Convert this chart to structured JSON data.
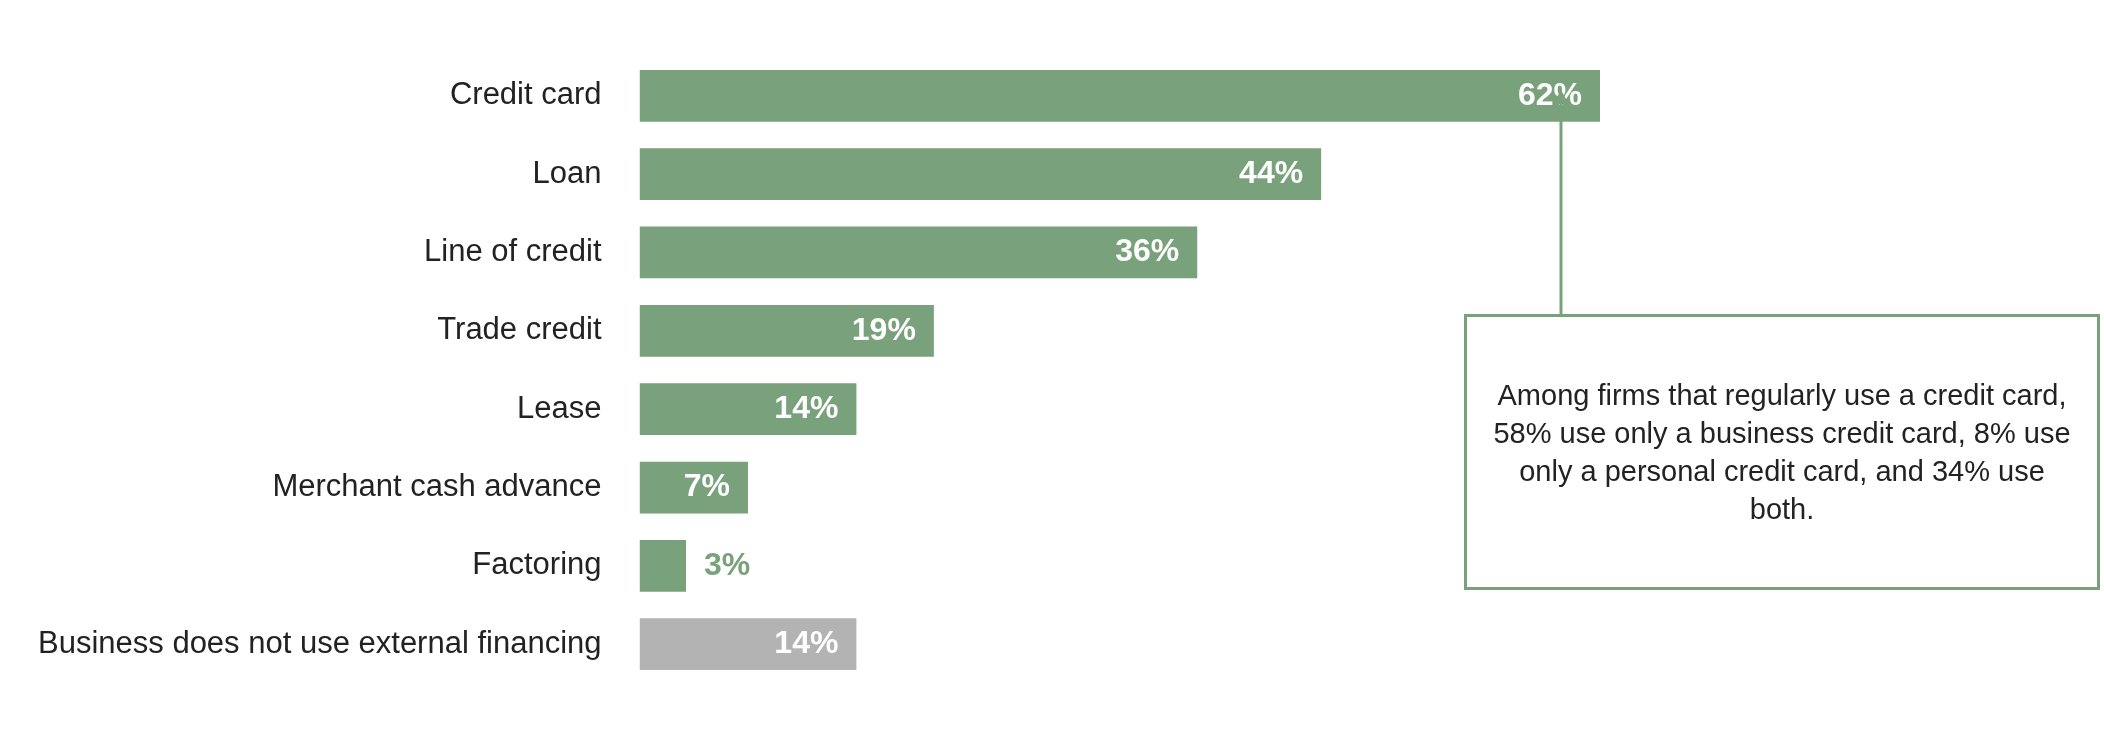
{
  "chart_data": {
    "type": "bar",
    "orientation": "horizontal",
    "categories": [
      "Credit card",
      "Loan",
      "Line of credit",
      "Trade credit",
      "Lease",
      "Merchant cash advance",
      "Factoring",
      "Business does not use external financing"
    ],
    "values": [
      62,
      44,
      36,
      19,
      14,
      7,
      3,
      14
    ],
    "value_labels": [
      "62%",
      "44%",
      "36%",
      "19%",
      "14%",
      "7%",
      "3%",
      "14%"
    ],
    "colors": [
      "#79a17b",
      "#79a17b",
      "#79a17b",
      "#79a17b",
      "#79a17b",
      "#79a17b",
      "#79a17b",
      "#b3b3b3"
    ],
    "annotations": [
      "Among firms that regularly use a credit card, 58% use only a business credit card, 8% use only a personal credit card, and 34% use both."
    ],
    "legend": false,
    "tick_labels": "y"
  }
}
